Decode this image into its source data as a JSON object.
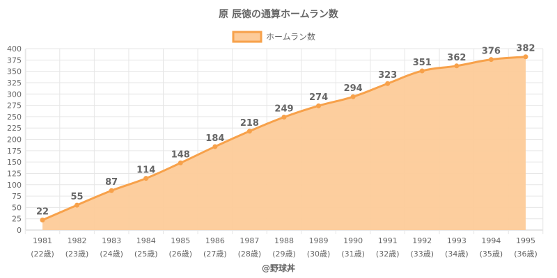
{
  "chart_data": {
    "type": "area",
    "title": "原 辰徳の通算ホームラン数",
    "series": [
      {
        "name": "ホームラン数",
        "values": [
          22,
          55,
          87,
          114,
          148,
          184,
          218,
          249,
          274,
          294,
          323,
          351,
          362,
          376,
          382
        ]
      }
    ],
    "categories": [
      "1981",
      "1982",
      "1983",
      "1984",
      "1985",
      "1986",
      "1987",
      "1988",
      "1989",
      "1990",
      "1991",
      "1992",
      "1993",
      "1994",
      "1995"
    ],
    "sub_labels": [
      "(22歳)",
      "(23歳)",
      "(24歳)",
      "(25歳)",
      "(26歳)",
      "(27歳)",
      "(28歳)",
      "(29歳)",
      "(30歳)",
      "(31歳)",
      "(32歳)",
      "(33歳)",
      "(34歳)",
      "(35歳)",
      "(36歳)"
    ],
    "ylim": [
      0,
      400
    ],
    "yticks": [
      0,
      25,
      50,
      75,
      100,
      125,
      150,
      175,
      200,
      225,
      250,
      275,
      300,
      325,
      350,
      375,
      400
    ],
    "grid": true,
    "legend_position": "top-center",
    "colors": {
      "line": "#f7a14a",
      "fill": "#fdcb99",
      "point": "#f7a14a"
    },
    "credit": "@野球丼"
  }
}
